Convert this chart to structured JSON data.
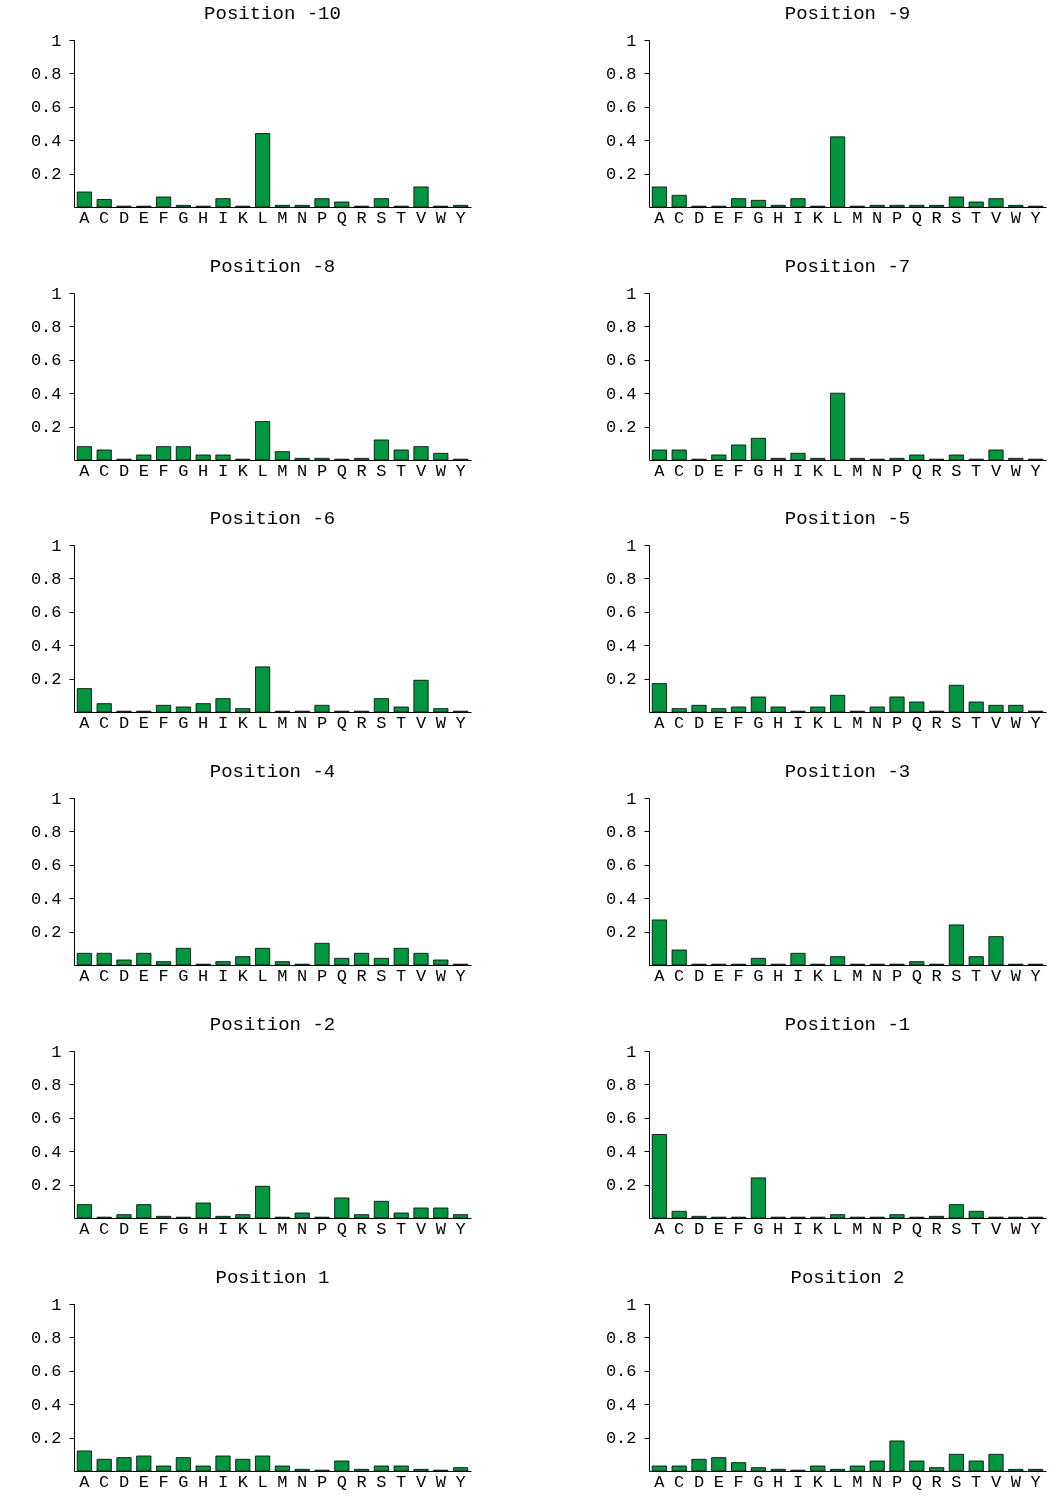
{
  "chart_data": [
    {
      "type": "bar",
      "title": "Position -10",
      "categories": [
        "A",
        "C",
        "D",
        "E",
        "F",
        "G",
        "H",
        "I",
        "K",
        "L",
        "M",
        "N",
        "P",
        "Q",
        "R",
        "S",
        "T",
        "V",
        "W",
        "Y"
      ],
      "values": [
        0.09,
        0.045,
        0.005,
        0.005,
        0.06,
        0.01,
        0.005,
        0.05,
        0.005,
        0.44,
        0.01,
        0.01,
        0.05,
        0.03,
        0.005,
        0.05,
        0.005,
        0.12,
        0.005,
        0.01
      ],
      "color": "#00963f",
      "ylim": [
        0,
        1
      ],
      "yticks": [
        0.2,
        0.4,
        0.6,
        0.8,
        1
      ]
    },
    {
      "type": "bar",
      "title": "Position -9",
      "categories": [
        "A",
        "C",
        "D",
        "E",
        "F",
        "G",
        "H",
        "I",
        "K",
        "L",
        "M",
        "N",
        "P",
        "Q",
        "R",
        "S",
        "T",
        "V",
        "W",
        "Y"
      ],
      "values": [
        0.12,
        0.07,
        0.005,
        0.005,
        0.05,
        0.04,
        0.01,
        0.05,
        0.005,
        0.42,
        0.005,
        0.01,
        0.01,
        0.01,
        0.01,
        0.06,
        0.03,
        0.05,
        0.01,
        0.005
      ],
      "color": "#00963f",
      "ylim": [
        0,
        1
      ],
      "yticks": [
        0.2,
        0.4,
        0.6,
        0.8,
        1
      ]
    },
    {
      "type": "bar",
      "title": "Position -8",
      "categories": [
        "A",
        "C",
        "D",
        "E",
        "F",
        "G",
        "H",
        "I",
        "K",
        "L",
        "M",
        "N",
        "P",
        "Q",
        "R",
        "S",
        "T",
        "V",
        "W",
        "Y"
      ],
      "values": [
        0.08,
        0.06,
        0.005,
        0.03,
        0.08,
        0.08,
        0.03,
        0.03,
        0.005,
        0.23,
        0.05,
        0.01,
        0.01,
        0.005,
        0.01,
        0.12,
        0.06,
        0.08,
        0.04,
        0.005
      ],
      "color": "#00963f",
      "ylim": [
        0,
        1
      ],
      "yticks": [
        0.2,
        0.4,
        0.6,
        0.8,
        1
      ]
    },
    {
      "type": "bar",
      "title": "Position -7",
      "categories": [
        "A",
        "C",
        "D",
        "E",
        "F",
        "G",
        "H",
        "I",
        "K",
        "L",
        "M",
        "N",
        "P",
        "Q",
        "R",
        "S",
        "T",
        "V",
        "W",
        "Y"
      ],
      "values": [
        0.06,
        0.06,
        0.005,
        0.03,
        0.09,
        0.13,
        0.01,
        0.04,
        0.01,
        0.4,
        0.01,
        0.005,
        0.01,
        0.03,
        0.005,
        0.03,
        0.005,
        0.06,
        0.01,
        0.005
      ],
      "color": "#00963f",
      "ylim": [
        0,
        1
      ],
      "yticks": [
        0.2,
        0.4,
        0.6,
        0.8,
        1
      ]
    },
    {
      "type": "bar",
      "title": "Position -6",
      "categories": [
        "A",
        "C",
        "D",
        "E",
        "F",
        "G",
        "H",
        "I",
        "K",
        "L",
        "M",
        "N",
        "P",
        "Q",
        "R",
        "S",
        "T",
        "V",
        "W",
        "Y"
      ],
      "values": [
        0.14,
        0.05,
        0.005,
        0.005,
        0.04,
        0.03,
        0.05,
        0.08,
        0.02,
        0.27,
        0.005,
        0.005,
        0.04,
        0.005,
        0.005,
        0.08,
        0.03,
        0.19,
        0.02,
        0.005
      ],
      "color": "#00963f",
      "ylim": [
        0,
        1
      ],
      "yticks": [
        0.2,
        0.4,
        0.6,
        0.8,
        1
      ]
    },
    {
      "type": "bar",
      "title": "Position -5",
      "categories": [
        "A",
        "C",
        "D",
        "E",
        "F",
        "G",
        "H",
        "I",
        "K",
        "L",
        "M",
        "N",
        "P",
        "Q",
        "R",
        "S",
        "T",
        "V",
        "W",
        "Y"
      ],
      "values": [
        0.17,
        0.02,
        0.04,
        0.02,
        0.03,
        0.09,
        0.03,
        0.005,
        0.03,
        0.1,
        0.005,
        0.03,
        0.09,
        0.06,
        0.005,
        0.16,
        0.06,
        0.04,
        0.04,
        0.005
      ],
      "color": "#00963f",
      "ylim": [
        0,
        1
      ],
      "yticks": [
        0.2,
        0.4,
        0.6,
        0.8,
        1
      ]
    },
    {
      "type": "bar",
      "title": "Position -4",
      "categories": [
        "A",
        "C",
        "D",
        "E",
        "F",
        "G",
        "H",
        "I",
        "K",
        "L",
        "M",
        "N",
        "P",
        "Q",
        "R",
        "S",
        "T",
        "V",
        "W",
        "Y"
      ],
      "values": [
        0.07,
        0.07,
        0.03,
        0.07,
        0.02,
        0.1,
        0.005,
        0.02,
        0.05,
        0.1,
        0.02,
        0.005,
        0.13,
        0.04,
        0.07,
        0.04,
        0.1,
        0.07,
        0.03,
        0.005
      ],
      "color": "#00963f",
      "ylim": [
        0,
        1
      ],
      "yticks": [
        0.2,
        0.4,
        0.6,
        0.8,
        1
      ]
    },
    {
      "type": "bar",
      "title": "Position -3",
      "categories": [
        "A",
        "C",
        "D",
        "E",
        "F",
        "G",
        "H",
        "I",
        "K",
        "L",
        "M",
        "N",
        "P",
        "Q",
        "R",
        "S",
        "T",
        "V",
        "W",
        "Y"
      ],
      "values": [
        0.27,
        0.09,
        0.005,
        0.005,
        0.005,
        0.04,
        0.005,
        0.07,
        0.005,
        0.05,
        0.005,
        0.005,
        0.005,
        0.02,
        0.005,
        0.24,
        0.05,
        0.17,
        0.005,
        0.005
      ],
      "color": "#00963f",
      "ylim": [
        0,
        1
      ],
      "yticks": [
        0.2,
        0.4,
        0.6,
        0.8,
        1
      ]
    },
    {
      "type": "bar",
      "title": "Position -2",
      "categories": [
        "A",
        "C",
        "D",
        "E",
        "F",
        "G",
        "H",
        "I",
        "K",
        "L",
        "M",
        "N",
        "P",
        "Q",
        "R",
        "S",
        "T",
        "V",
        "W",
        "Y"
      ],
      "values": [
        0.08,
        0.005,
        0.02,
        0.08,
        0.01,
        0.005,
        0.09,
        0.01,
        0.02,
        0.19,
        0.005,
        0.03,
        0.005,
        0.12,
        0.02,
        0.1,
        0.03,
        0.06,
        0.06,
        0.02
      ],
      "color": "#00963f",
      "ylim": [
        0,
        1
      ],
      "yticks": [
        0.2,
        0.4,
        0.6,
        0.8,
        1
      ]
    },
    {
      "type": "bar",
      "title": "Position -1",
      "categories": [
        "A",
        "C",
        "D",
        "E",
        "F",
        "G",
        "H",
        "I",
        "K",
        "L",
        "M",
        "N",
        "P",
        "Q",
        "R",
        "S",
        "T",
        "V",
        "W",
        "Y"
      ],
      "values": [
        0.5,
        0.04,
        0.01,
        0.005,
        0.005,
        0.24,
        0.005,
        0.005,
        0.005,
        0.02,
        0.005,
        0.005,
        0.02,
        0.005,
        0.01,
        0.08,
        0.04,
        0.005,
        0.005,
        0.005
      ],
      "color": "#00963f",
      "ylim": [
        0,
        1
      ],
      "yticks": [
        0.2,
        0.4,
        0.6,
        0.8,
        1
      ]
    },
    {
      "type": "bar",
      "title": "Position 1",
      "categories": [
        "A",
        "C",
        "D",
        "E",
        "F",
        "G",
        "H",
        "I",
        "K",
        "L",
        "M",
        "N",
        "P",
        "Q",
        "R",
        "S",
        "T",
        "V",
        "W",
        "Y"
      ],
      "values": [
        0.12,
        0.07,
        0.08,
        0.09,
        0.03,
        0.08,
        0.03,
        0.09,
        0.07,
        0.09,
        0.03,
        0.01,
        0.005,
        0.06,
        0.01,
        0.03,
        0.03,
        0.01,
        0.005,
        0.02
      ],
      "color": "#00963f",
      "ylim": [
        0,
        1
      ],
      "yticks": [
        0.2,
        0.4,
        0.6,
        0.8,
        1
      ]
    },
    {
      "type": "bar",
      "title": "Position 2",
      "categories": [
        "A",
        "C",
        "D",
        "E",
        "F",
        "G",
        "H",
        "I",
        "K",
        "L",
        "M",
        "N",
        "P",
        "Q",
        "R",
        "S",
        "T",
        "V",
        "W",
        "Y"
      ],
      "values": [
        0.03,
        0.03,
        0.07,
        0.08,
        0.05,
        0.02,
        0.01,
        0.005,
        0.03,
        0.01,
        0.03,
        0.06,
        0.18,
        0.06,
        0.02,
        0.1,
        0.06,
        0.1,
        0.01,
        0.01
      ],
      "color": "#00963f",
      "ylim": [
        0,
        1
      ],
      "yticks": [
        0.2,
        0.4,
        0.6,
        0.8,
        1
      ]
    }
  ]
}
